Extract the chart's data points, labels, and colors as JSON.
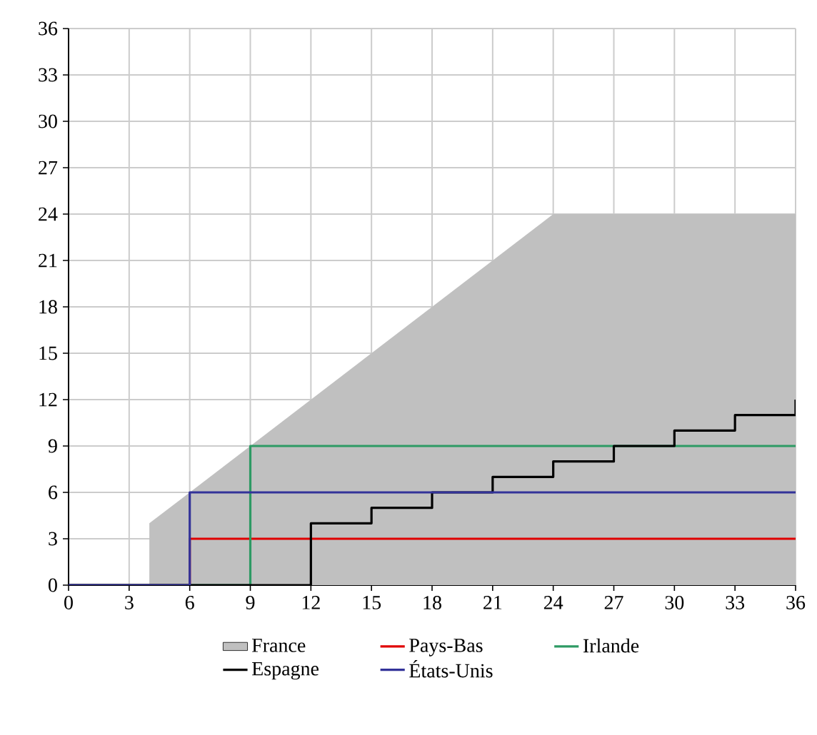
{
  "chart_data": {
    "type": "step",
    "xlim": [
      0,
      36
    ],
    "ylim": [
      0,
      36
    ],
    "xticks": [
      0,
      3,
      6,
      9,
      12,
      15,
      18,
      21,
      24,
      27,
      30,
      33,
      36
    ],
    "yticks": [
      0,
      3,
      6,
      9,
      12,
      15,
      18,
      21,
      24,
      27,
      30,
      33,
      36
    ],
    "grid": true,
    "legend": "bottom",
    "series": [
      {
        "name": "France",
        "type": "area",
        "color": "#c0c0c0",
        "x": [
          4,
          4,
          24,
          36
        ],
        "values": [
          0,
          4,
          24,
          24
        ]
      },
      {
        "name": "Pays-Bas",
        "color": "#e00000",
        "x": [
          0,
          6,
          36
        ],
        "values": [
          0,
          3,
          3
        ]
      },
      {
        "name": "Irlande",
        "color": "#2e9a64",
        "x": [
          0,
          9,
          36
        ],
        "values": [
          0,
          9,
          9
        ]
      },
      {
        "name": "Espagne",
        "color": "#000000",
        "x": [
          0,
          12,
          15,
          18,
          21,
          24,
          27,
          30,
          33,
          36
        ],
        "values": [
          0,
          4,
          5,
          6,
          7,
          8,
          9,
          10,
          11,
          12
        ]
      },
      {
        "name": "États-Unis",
        "color": "#333399",
        "x": [
          0,
          6,
          36
        ],
        "values": [
          0,
          6,
          6
        ]
      }
    ]
  }
}
